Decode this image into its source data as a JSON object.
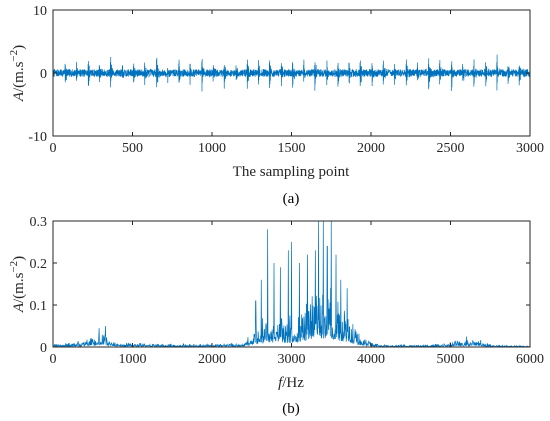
{
  "chart_data": [
    {
      "type": "line",
      "panel_caption": "(a)",
      "xlabel": "The sampling point",
      "ylabel_italic": "A",
      "ylabel_unit_base": "/(m.s",
      "ylabel_unit_exp": "−2",
      "ylabel_unit_close": ")",
      "xlim": [
        0,
        3000
      ],
      "ylim": [
        -10,
        10
      ],
      "xticks": [
        "0",
        "500",
        "1000",
        "1500",
        "2000",
        "2500",
        "3000"
      ],
      "xtick_values": [
        0,
        500,
        1000,
        1500,
        2000,
        2500,
        3000
      ],
      "yticks": [
        "-10",
        "0",
        "10"
      ],
      "ytick_values": [
        -10,
        0,
        10
      ],
      "line_color": "#0072BD",
      "series": [
        {
          "baseline_noise_amplitude": 0.6,
          "impulse_positions": [
            75,
            145,
            220,
            290,
            360,
            435,
            505,
            575,
            650,
            720,
            790,
            860,
            935,
            1005,
            1075,
            1150,
            1220,
            1290,
            1360,
            1435,
            1505,
            1575,
            1645,
            1720,
            1790,
            1860,
            1930,
            2005,
            2075,
            2145,
            2220,
            2290,
            2360,
            2430,
            2505,
            2575,
            2645,
            2720,
            2790,
            2860,
            2930
          ],
          "impulse_peaks": [
            4,
            3,
            4.5,
            3,
            4.2,
            2.5,
            4,
            3,
            4.5,
            3,
            3.8,
            2.5,
            4.3,
            3,
            4,
            2.5,
            5.2,
            3.5,
            4.2,
            3,
            4.5,
            3.5,
            4.8,
            3,
            4.3,
            3,
            4.2,
            3,
            4,
            3,
            4.5,
            3,
            4.6,
            3,
            4.2,
            3,
            4,
            3,
            4.2,
            3,
            3.5
          ]
        }
      ]
    },
    {
      "type": "line",
      "panel_caption": "(b)",
      "xlabel_italic": "f",
      "xlabel_unit": "/Hz",
      "ylabel_italic": "A",
      "ylabel_unit_base": "/(m.s",
      "ylabel_unit_exp": "−2",
      "ylabel_unit_close": ")",
      "xlim": [
        0,
        6000
      ],
      "ylim": [
        0,
        0.3
      ],
      "xticks": [
        "0",
        "1000",
        "2000",
        "3000",
        "4000",
        "5000",
        "6000"
      ],
      "xtick_values": [
        0,
        1000,
        2000,
        3000,
        4000,
        5000,
        6000
      ],
      "yticks": [
        "0",
        "0.1",
        "0.2",
        "0.3"
      ],
      "ytick_values": [
        0,
        0.1,
        0.2,
        0.3
      ],
      "line_color": "#0072BD",
      "series": [
        {
          "envelope_x": [
            0,
            300,
            500,
            650,
            750,
            1000,
            1500,
            2000,
            2400,
            2550,
            2750,
            2950,
            3150,
            3350,
            3500,
            3700,
            3900,
            4100,
            4500,
            4900,
            5100,
            5300,
            5500,
            6000
          ],
          "envelope_y": [
            0.005,
            0.01,
            0.02,
            0.03,
            0.01,
            0.008,
            0.006,
            0.006,
            0.01,
            0.04,
            0.07,
            0.06,
            0.09,
            0.13,
            0.12,
            0.07,
            0.02,
            0.005,
            0.004,
            0.006,
            0.015,
            0.02,
            0.005,
            0.003
          ],
          "peaks": [
            {
              "x": 580,
              "y": 0.045
            },
            {
              "x": 660,
              "y": 0.05
            },
            {
              "x": 2550,
              "y": 0.11
            },
            {
              "x": 2620,
              "y": 0.16
            },
            {
              "x": 2700,
              "y": 0.28
            },
            {
              "x": 2780,
              "y": 0.2
            },
            {
              "x": 2860,
              "y": 0.19
            },
            {
              "x": 2960,
              "y": 0.23
            },
            {
              "x": 3000,
              "y": 0.25
            },
            {
              "x": 3100,
              "y": 0.2
            },
            {
              "x": 3200,
              "y": 0.22
            },
            {
              "x": 3300,
              "y": 0.23
            },
            {
              "x": 3340,
              "y": 0.3
            },
            {
              "x": 3400,
              "y": 0.3
            },
            {
              "x": 3450,
              "y": 0.24
            },
            {
              "x": 3500,
              "y": 0.3
            },
            {
              "x": 3560,
              "y": 0.22
            },
            {
              "x": 3620,
              "y": 0.16
            },
            {
              "x": 3700,
              "y": 0.14
            },
            {
              "x": 5200,
              "y": 0.025
            }
          ]
        }
      ]
    }
  ]
}
